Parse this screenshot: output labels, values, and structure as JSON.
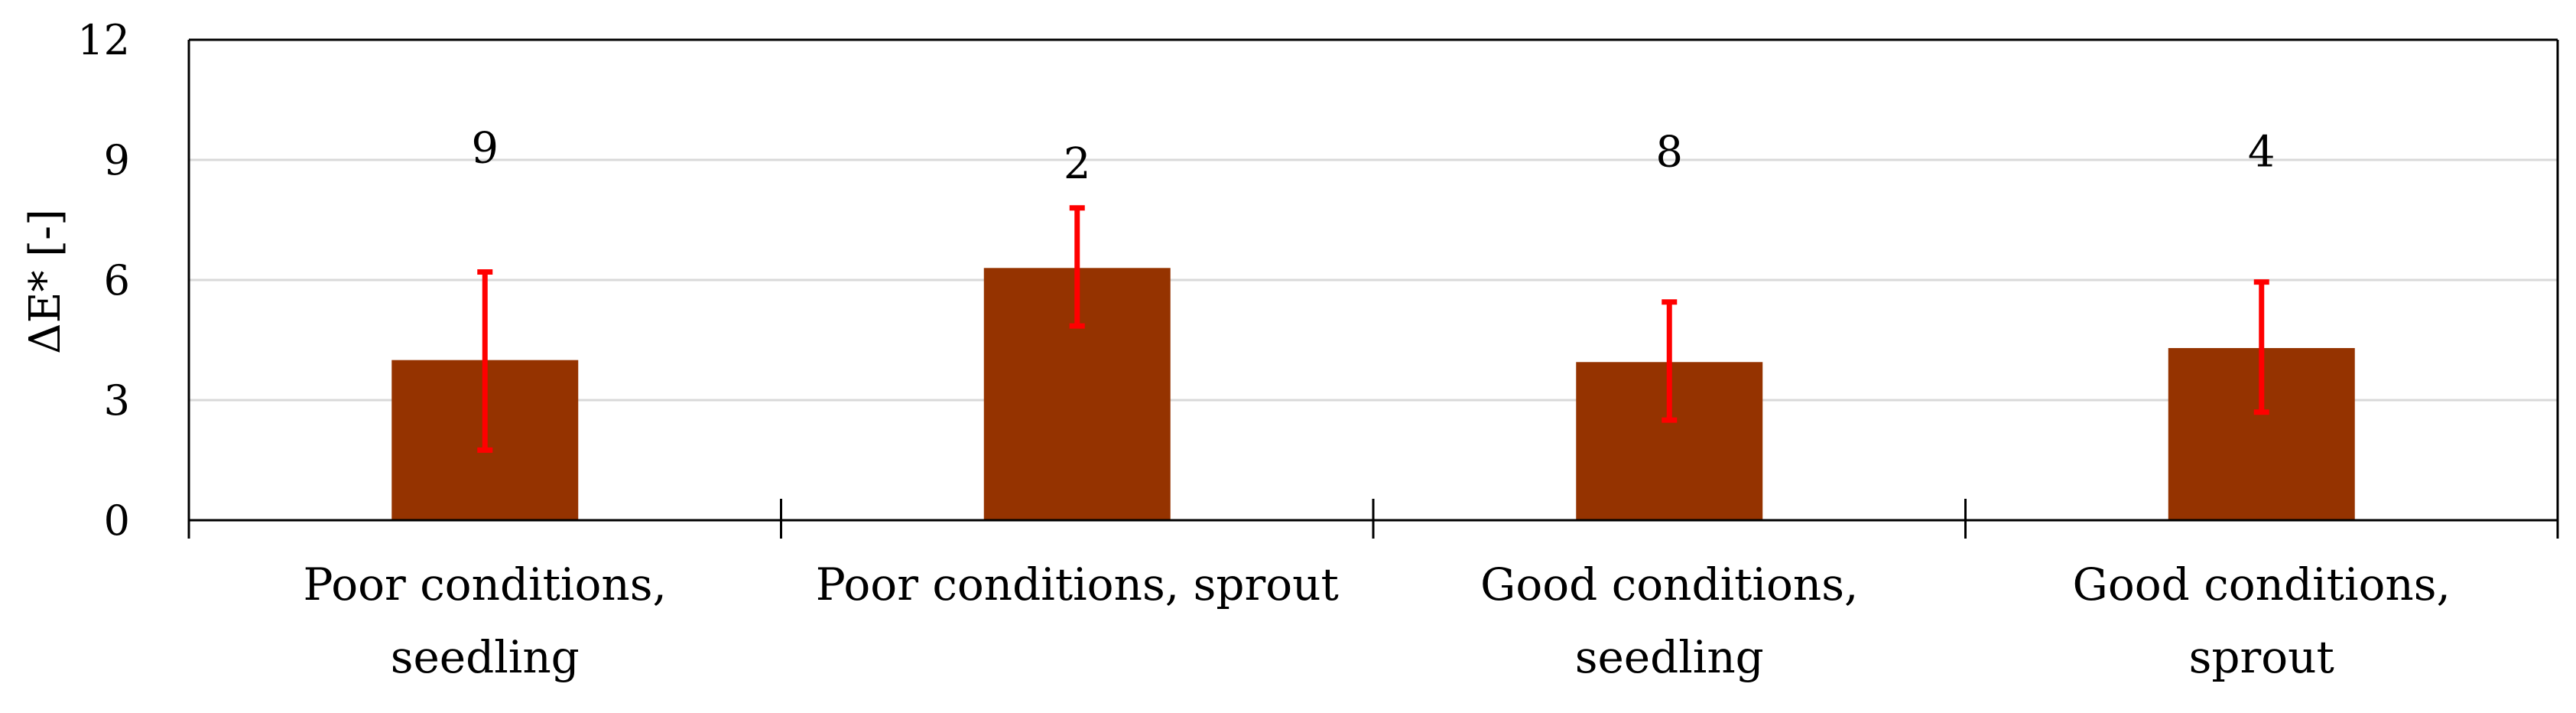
{
  "chart_data": {
    "type": "bar",
    "title": "",
    "xlabel": "",
    "ylabel": "ΔE* [-]",
    "ylim": [
      0,
      12
    ],
    "yticks": [
      0,
      3,
      6,
      9,
      12
    ],
    "grid": true,
    "categories": [
      [
        "Poor conditions,",
        "seedling"
      ],
      [
        "Poor conditions, sprout"
      ],
      [
        "Good conditions,",
        "seedling"
      ],
      [
        "Good conditions,",
        "sprout"
      ]
    ],
    "values": [
      4.0,
      6.3,
      3.95,
      4.3
    ],
    "error_low": [
      1.75,
      4.85,
      2.5,
      2.7
    ],
    "error_high": [
      6.2,
      7.8,
      5.45,
      5.95
    ],
    "labels": [
      "9",
      "2",
      "8",
      "4"
    ],
    "label_y": [
      9.3,
      8.9,
      9.2,
      9.2
    ],
    "colors": {
      "bar": "#953300",
      "error": "#ff0000"
    }
  }
}
